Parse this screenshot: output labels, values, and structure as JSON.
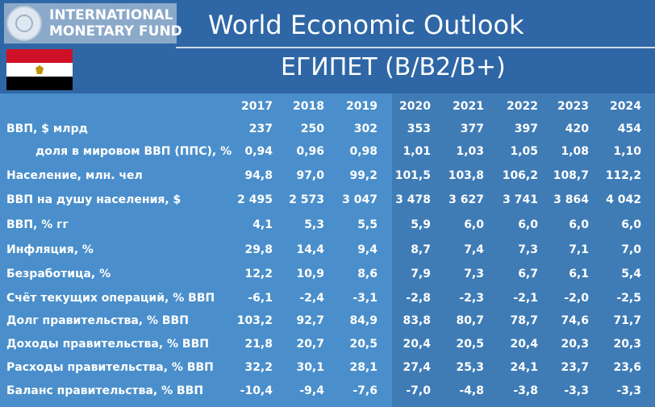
{
  "header": {
    "org_line1": "INTERNATIONAL",
    "org_line2": "MONETARY FUND",
    "title": "World Economic Outlook",
    "subtitle": "ЕГИПЕТ (B/B2/B+)"
  },
  "colors": {
    "banner": "#2f67a6",
    "table_left": "#4a8fcb",
    "table_right": "#3f7cb6",
    "text": "#ffffff"
  },
  "table": {
    "years": [
      "2017",
      "2018",
      "2019",
      "2020",
      "2021",
      "2022",
      "2023",
      "2024"
    ],
    "rows": [
      {
        "label": "ВВП, $ млрд",
        "indent": false,
        "values": [
          "237",
          "250",
          "302",
          "353",
          "377",
          "397",
          "420",
          "454"
        ]
      },
      {
        "label": "доля в мировом ВВП (ППС), %",
        "indent": true,
        "values": [
          "0,94",
          "0,96",
          "0,98",
          "1,01",
          "1,03",
          "1,05",
          "1,08",
          "1,10"
        ]
      },
      {
        "label": "Население, млн. чел",
        "indent": false,
        "values": [
          "94,8",
          "97,0",
          "99,2",
          "101,5",
          "103,8",
          "106,2",
          "108,7",
          "112,2"
        ]
      },
      {
        "label": "ВВП на душу населения, $",
        "indent": false,
        "values": [
          "2 495",
          "2 573",
          "3 047",
          "3 478",
          "3 627",
          "3 741",
          "3 864",
          "4 042"
        ]
      },
      {
        "label": "ВВП, % гг",
        "indent": false,
        "values": [
          "4,1",
          "5,3",
          "5,5",
          "5,9",
          "6,0",
          "6,0",
          "6,0",
          "6,0"
        ]
      },
      {
        "label": "Инфляция, %",
        "indent": false,
        "values": [
          "29,8",
          "14,4",
          "9,4",
          "8,7",
          "7,4",
          "7,3",
          "7,1",
          "7,0"
        ]
      },
      {
        "label": "Безработица, %",
        "indent": false,
        "values": [
          "12,2",
          "10,9",
          "8,6",
          "7,9",
          "7,3",
          "6,7",
          "6,1",
          "5,4"
        ]
      },
      {
        "label": "Счёт текущих операций, % ВВП",
        "indent": false,
        "values": [
          "-6,1",
          "-2,4",
          "-3,1",
          "-2,8",
          "-2,3",
          "-2,1",
          "-2,0",
          "-2,5"
        ]
      },
      {
        "label": "Долг правительства, % ВВП",
        "indent": false,
        "values": [
          "103,2",
          "92,7",
          "84,9",
          "83,8",
          "80,7",
          "78,7",
          "74,6",
          "71,7"
        ]
      },
      {
        "label": "Доходы правительства, % ВВП",
        "indent": false,
        "values": [
          "21,8",
          "20,7",
          "20,5",
          "20,4",
          "20,5",
          "20,4",
          "20,3",
          "20,3"
        ]
      },
      {
        "label": "Расходы правительства, % ВВП",
        "indent": false,
        "values": [
          "32,2",
          "30,1",
          "28,1",
          "27,4",
          "25,3",
          "24,1",
          "23,7",
          "23,6"
        ]
      },
      {
        "label": "Баланс правительства, % ВВП",
        "indent": false,
        "values": [
          "-10,4",
          "-9,4",
          "-7,6",
          "-7,0",
          "-4,8",
          "-3,8",
          "-3,3",
          "-3,3"
        ]
      }
    ]
  }
}
